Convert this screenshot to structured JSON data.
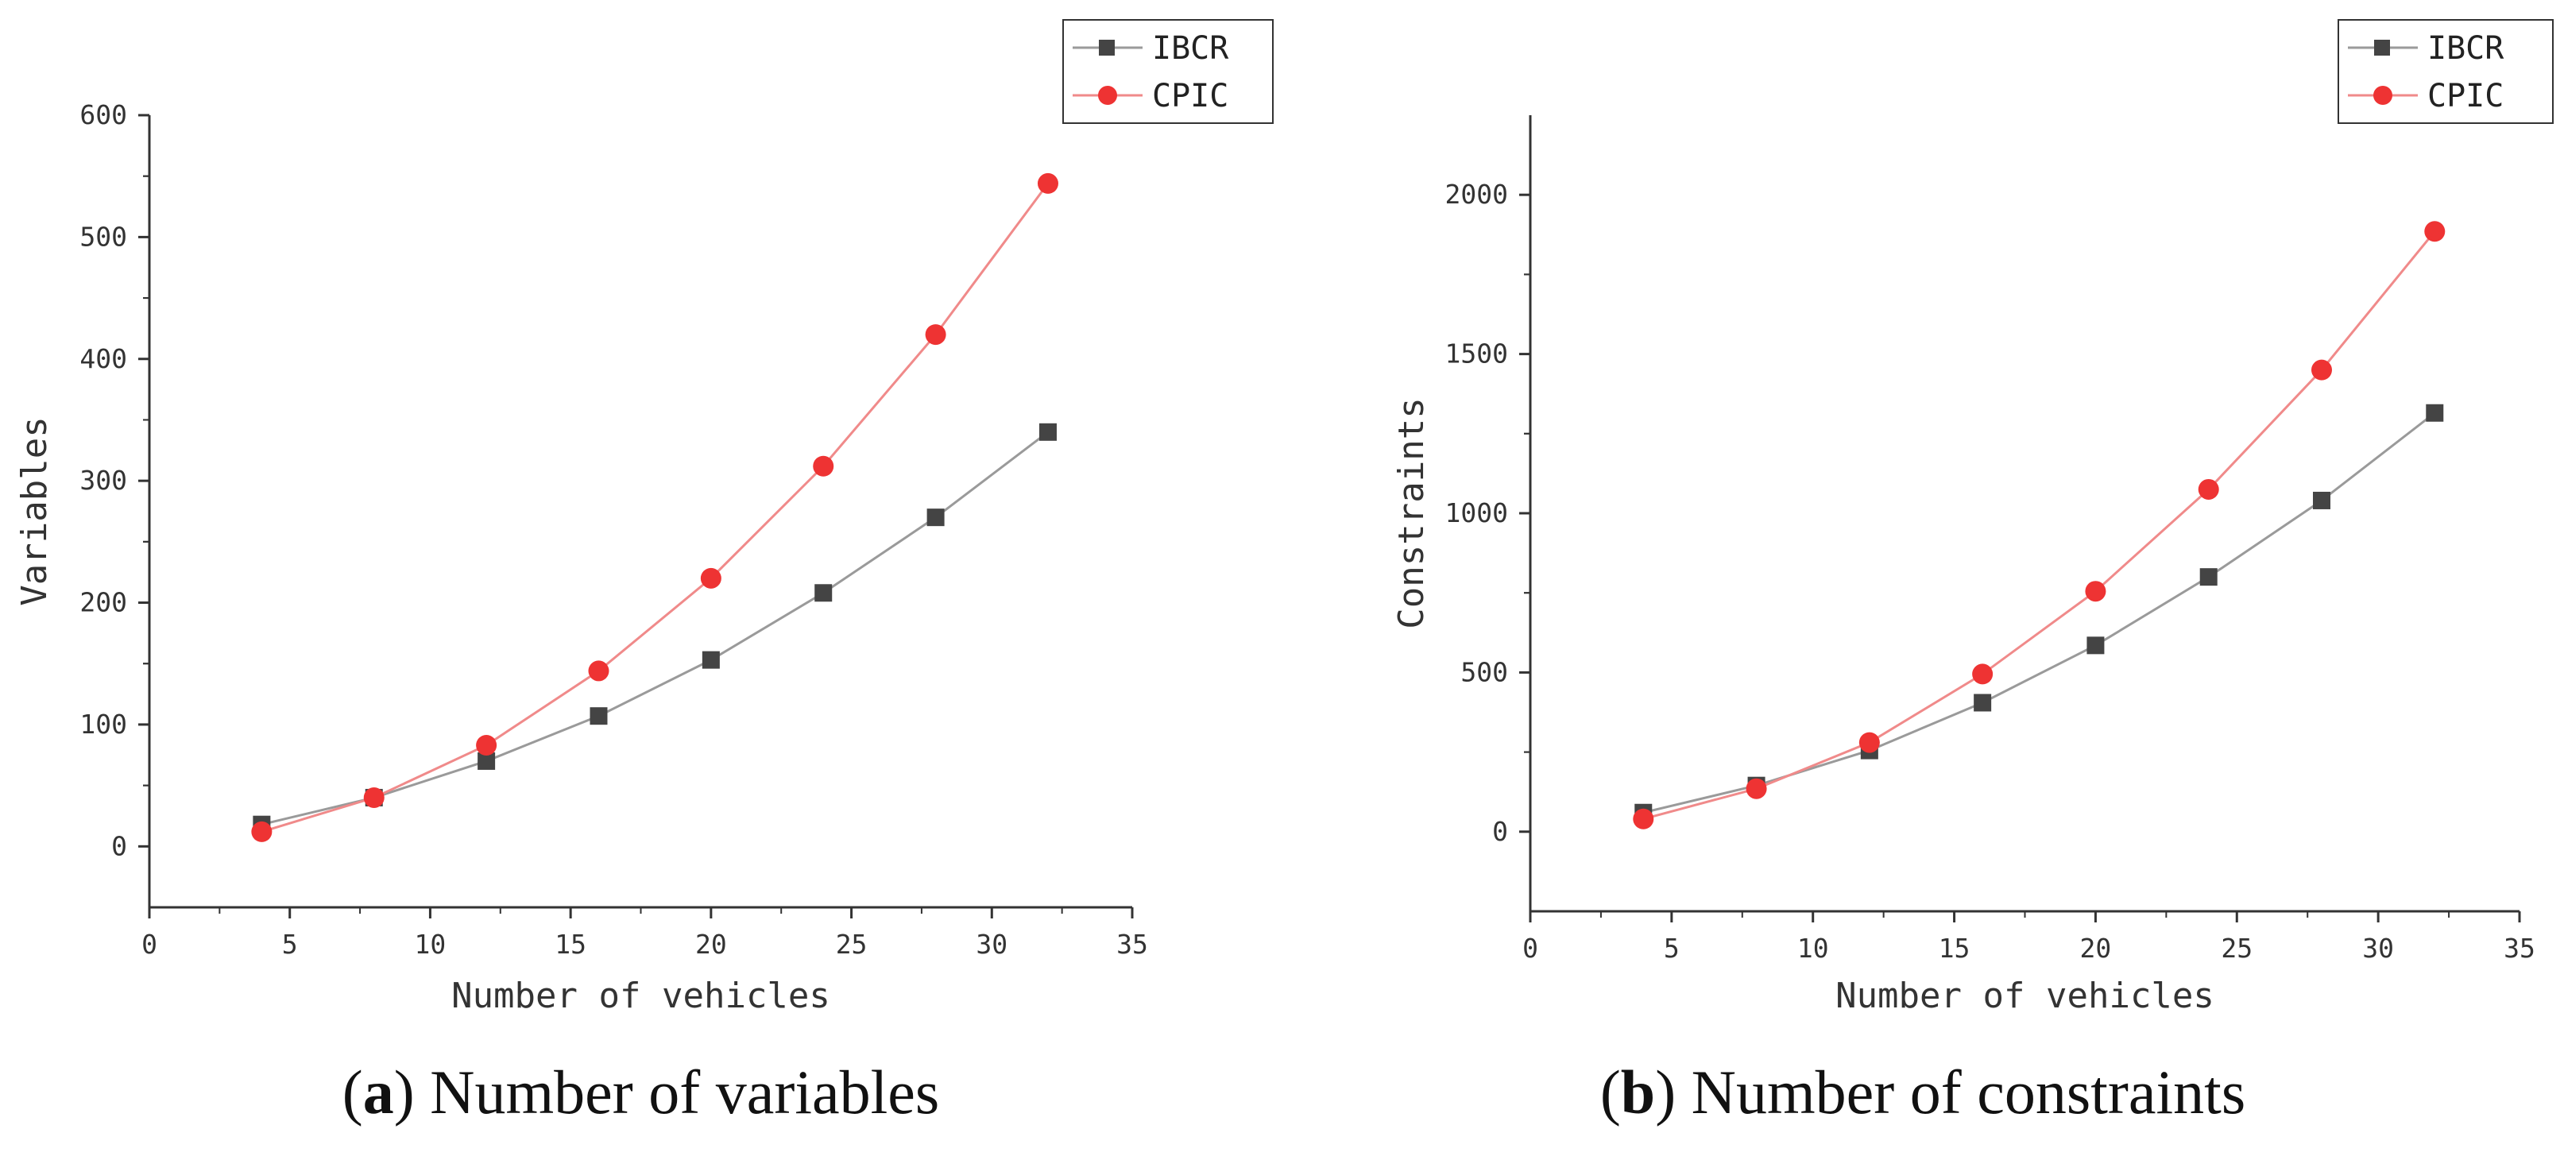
{
  "chart_data": [
    {
      "type": "line",
      "title": "",
      "xlabel": "Number of vehicles",
      "ylabel": "Variables",
      "xlim": [
        0,
        35
      ],
      "ylim": [
        -50,
        600
      ],
      "xticks": [
        0,
        5,
        10,
        15,
        20,
        25,
        30,
        35
      ],
      "yticks": [
        0,
        100,
        200,
        300,
        400,
        500,
        600
      ],
      "grid": false,
      "legend_position": "top-right",
      "x": [
        4,
        8,
        12,
        16,
        20,
        24,
        28,
        32
      ],
      "series": [
        {
          "name": "IBCR",
          "marker": "square",
          "color": "#444444",
          "line_color": "#9a9a9a",
          "values": [
            18,
            40,
            70,
            107,
            153,
            208,
            270,
            340
          ]
        },
        {
          "name": "CPIC",
          "marker": "circle",
          "color": "#ee3333",
          "line_color": "#f08a8a",
          "values": [
            12,
            40,
            83,
            144,
            220,
            312,
            420,
            544
          ]
        }
      ],
      "caption": {
        "letter": "a",
        "text": ") Number of variables",
        "open": "("
      }
    },
    {
      "type": "line",
      "title": "",
      "xlabel": "Number of vehicles",
      "ylabel": "Constraints",
      "xlim": [
        0,
        35
      ],
      "ylim": [
        -250,
        2250
      ],
      "xticks": [
        0,
        5,
        10,
        15,
        20,
        25,
        30,
        35
      ],
      "yticks": [
        0,
        500,
        1000,
        1500,
        2000
      ],
      "grid": false,
      "legend_position": "top-right",
      "x": [
        4,
        8,
        12,
        16,
        20,
        24,
        28,
        32
      ],
      "series": [
        {
          "name": "IBCR",
          "marker": "square",
          "color": "#444444",
          "line_color": "#9a9a9a",
          "values": [
            60,
            145,
            255,
            405,
            585,
            800,
            1040,
            1315
          ]
        },
        {
          "name": "CPIC",
          "marker": "circle",
          "color": "#ee3333",
          "line_color": "#f08a8a",
          "values": [
            40,
            135,
            280,
            495,
            755,
            1075,
            1450,
            1885
          ]
        }
      ],
      "caption": {
        "letter": "b",
        "text": ") Number of constraints",
        "open": "("
      }
    }
  ]
}
